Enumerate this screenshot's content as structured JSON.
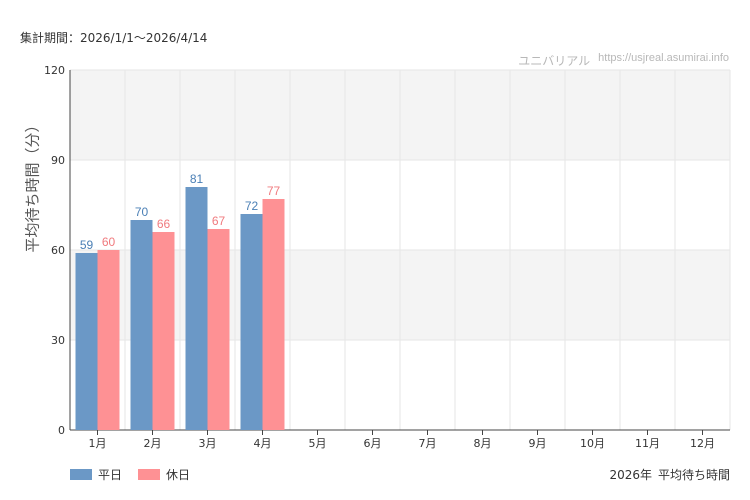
{
  "header": {
    "period_text": "集計期間：2026/1/1〜2026/4/14",
    "credit_name": "ユニバリアル",
    "credit_url": "https://usjreal.asumirai.info"
  },
  "footer": {
    "year_label": "2026年",
    "caption": "平均待ち時間"
  },
  "colors": {
    "weekday": "#6b98c6",
    "holiday": "#fe9194",
    "weekday_label": "#4a7fb5",
    "holiday_label": "#f07a7e",
    "band": "#f4f4f4",
    "grid": "#e6e6e6"
  },
  "chart_data": {
    "type": "bar",
    "categories": [
      "1月",
      "2月",
      "3月",
      "4月",
      "5月",
      "6月",
      "7月",
      "8月",
      "9月",
      "10月",
      "11月",
      "12月"
    ],
    "series": [
      {
        "name": "平日",
        "values": [
          59,
          70,
          81,
          72,
          null,
          null,
          null,
          null,
          null,
          null,
          null,
          null
        ]
      },
      {
        "name": "休日",
        "values": [
          60,
          66,
          67,
          77,
          null,
          null,
          null,
          null,
          null,
          null,
          null,
          null
        ]
      }
    ],
    "ylabel": "平均待ち時間（分）",
    "ylim": [
      0,
      120
    ],
    "yticks": [
      0,
      30,
      60,
      90,
      120
    ],
    "legend": "bottom-left",
    "grid": true
  }
}
